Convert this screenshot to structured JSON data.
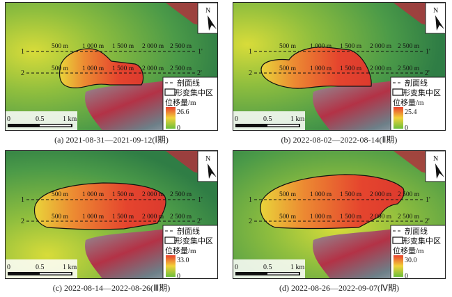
{
  "legend": {
    "profile_line": "剖面线",
    "deformation_zone": "形变集中区",
    "displacement_title": "位移量/m",
    "min": "0"
  },
  "scale_bar": {
    "labels": [
      "0",
      "0.5",
      "1 km"
    ]
  },
  "north_arrow": "N",
  "profiles": {
    "line1_start": "1",
    "line1_end": "1'",
    "line2_start": "2",
    "line2_end": "2'",
    "distances": [
      "500 m",
      "1 000 m",
      "1 500 m",
      "2 000 m",
      "2 500 m"
    ]
  },
  "panels": [
    {
      "id": "a",
      "caption": "(a) 2021-08-31—2021-09-12(Ⅰ期)",
      "max": "26.6"
    },
    {
      "id": "b",
      "caption": "(b) 2022-08-02—2022-08-14(Ⅱ期)",
      "max": "25.4"
    },
    {
      "id": "c",
      "caption": "(c) 2022-08-14—2022-08-26(Ⅲ期)",
      "max": "33.0"
    },
    {
      "id": "d",
      "caption": "(d) 2022-08-26—2022-09-07(Ⅳ期)",
      "max": "30.0"
    }
  ]
}
